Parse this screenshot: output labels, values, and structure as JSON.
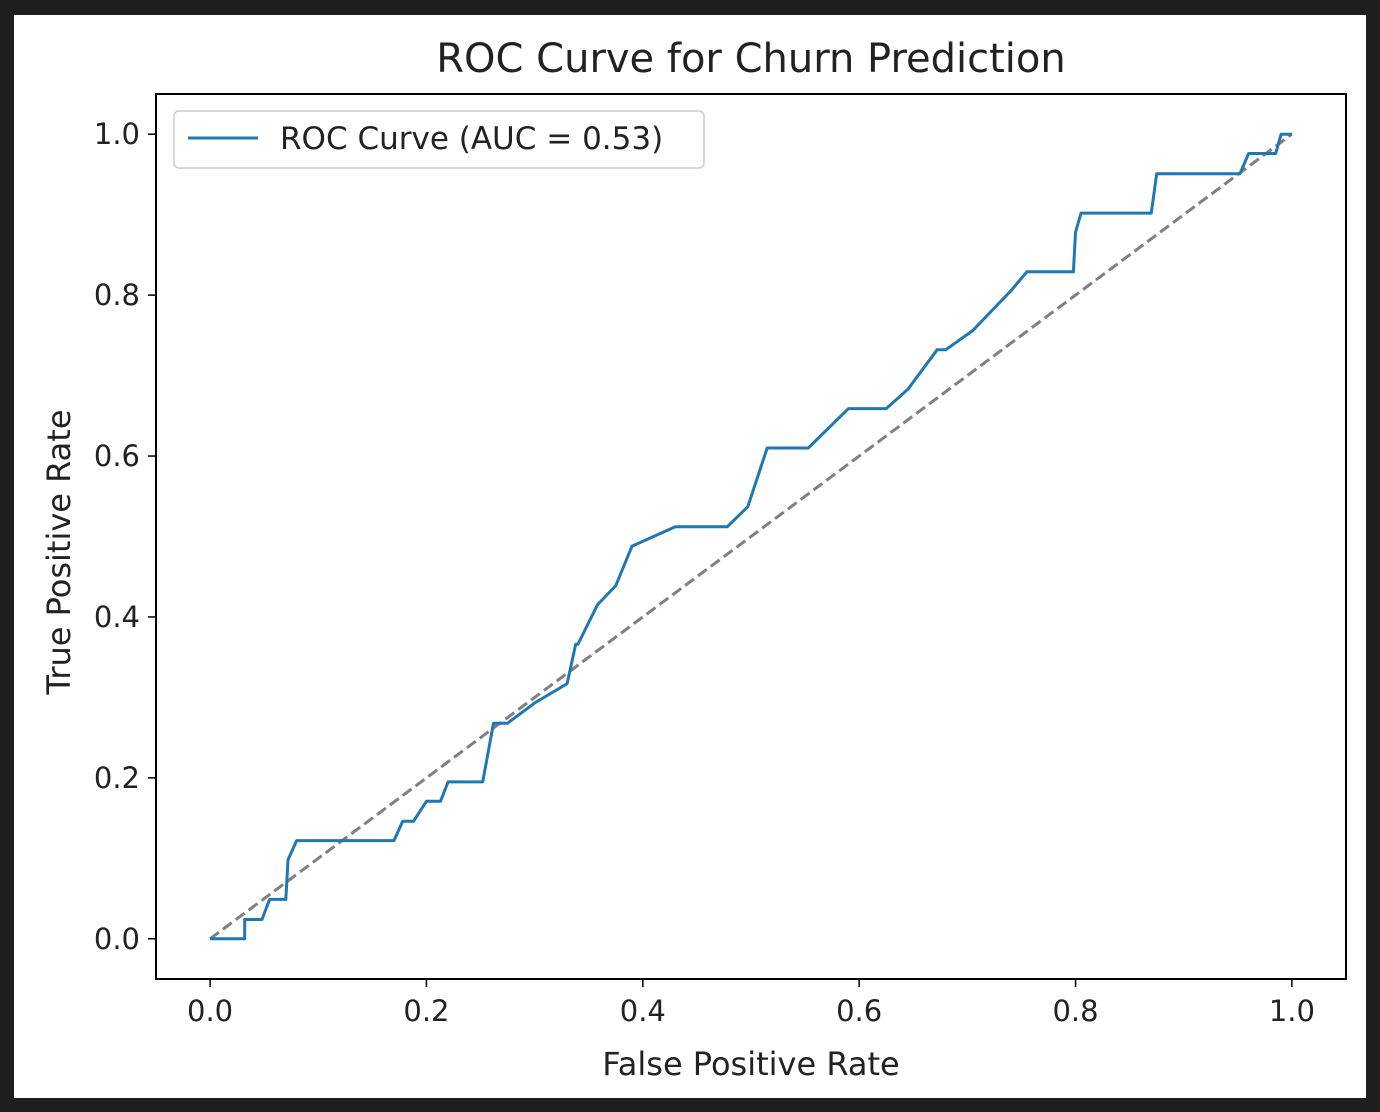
{
  "chart_data": {
    "type": "line",
    "title": "ROC Curve for Churn Prediction",
    "xlabel": "False Positive Rate",
    "ylabel": "True Positive Rate",
    "xlim": [
      -0.05,
      1.05
    ],
    "ylim": [
      -0.05,
      1.05
    ],
    "xticks": [
      "0.0",
      "0.2",
      "0.4",
      "0.6",
      "0.8",
      "1.0"
    ],
    "yticks": [
      "0.0",
      "0.2",
      "0.4",
      "0.6",
      "0.8",
      "1.0"
    ],
    "grid": false,
    "legend_position": "upper left",
    "series": [
      {
        "name": "ROC Curve (AUC = 0.53)",
        "style": "solid",
        "color": "#1f77b4",
        "x": [
          0.0,
          0.032,
          0.032,
          0.048,
          0.055,
          0.07,
          0.072,
          0.08,
          0.17,
          0.178,
          0.188,
          0.2,
          0.213,
          0.22,
          0.225,
          0.252,
          0.262,
          0.265,
          0.275,
          0.3,
          0.33,
          0.338,
          0.34,
          0.358,
          0.375,
          0.39,
          0.43,
          0.478,
          0.497,
          0.515,
          0.553,
          0.59,
          0.625,
          0.645,
          0.672,
          0.68,
          0.705,
          0.74,
          0.755,
          0.798,
          0.8,
          0.805,
          0.87,
          0.875,
          0.952,
          0.96,
          0.985,
          0.99,
          1.0
        ],
        "y": [
          0.0,
          0.0,
          0.024,
          0.024,
          0.049,
          0.049,
          0.098,
          0.122,
          0.122,
          0.146,
          0.146,
          0.171,
          0.171,
          0.195,
          0.195,
          0.195,
          0.268,
          0.268,
          0.268,
          0.293,
          0.317,
          0.366,
          0.366,
          0.415,
          0.439,
          0.488,
          0.512,
          0.512,
          0.537,
          0.61,
          0.61,
          0.659,
          0.659,
          0.683,
          0.732,
          0.732,
          0.756,
          0.805,
          0.829,
          0.829,
          0.878,
          0.902,
          0.902,
          0.951,
          0.951,
          0.976,
          0.976,
          1.0,
          1.0
        ]
      },
      {
        "name": "",
        "style": "dashed",
        "color": "#808080",
        "x": [
          0.0,
          1.0
        ],
        "y": [
          0.0,
          1.0
        ]
      }
    ]
  }
}
